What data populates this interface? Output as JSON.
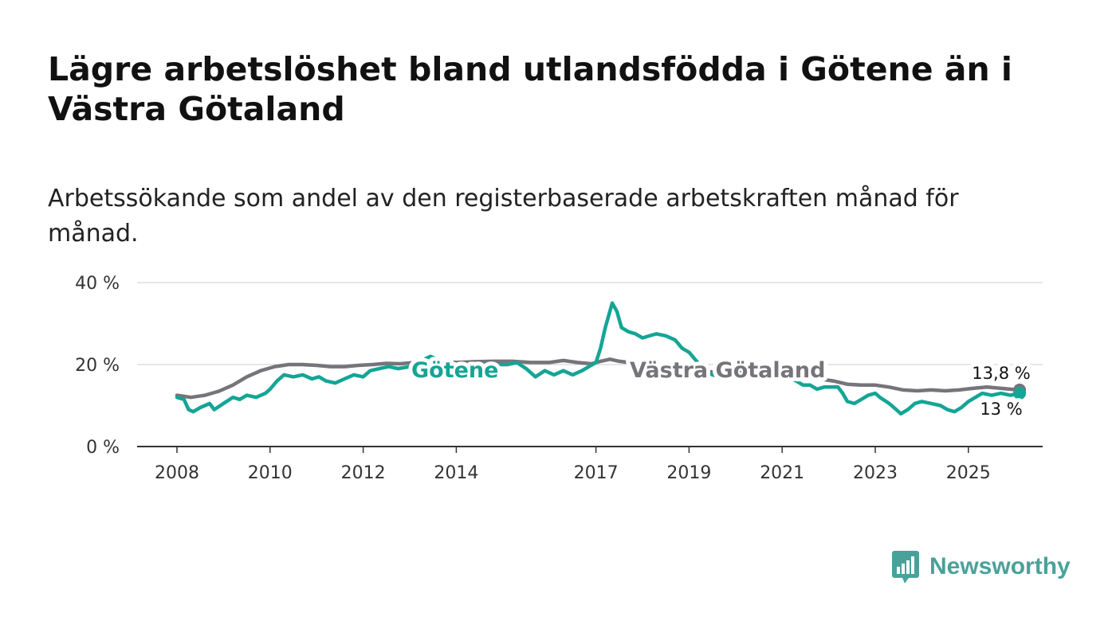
{
  "header": {
    "title": "Lägre arbetslöshet bland utlandsfödda i Götene än i Västra Götaland",
    "subtitle": "Arbetssökande som andel av den registerbaserade arbetskraften månad för månad."
  },
  "brand": {
    "name": "Newsworthy",
    "icon": "newsworthy-logo-icon"
  },
  "colors": {
    "gotene": "#14a595",
    "vastra": "#76747a",
    "grid": "#dddddd",
    "axis": "#333333",
    "brand": "#48a29a"
  },
  "chart_data": {
    "type": "line",
    "title": "Lägre arbetslöshet bland utlandsfödda i Götene än i Västra Götaland",
    "subtitle": "Arbetssökande som andel av den registerbaserade arbetskraften månad för månad.",
    "xlabel": "",
    "ylabel": "",
    "xlim": [
      2008.0,
      2026.5
    ],
    "ylim": [
      0,
      40
    ],
    "grid": true,
    "yticks": [
      0,
      20,
      40
    ],
    "ytick_labels": [
      "0 %",
      "20 %",
      "40 %"
    ],
    "xticks": [
      2008,
      2010,
      2012,
      2014,
      2017,
      2019,
      2021,
      2023,
      2025
    ],
    "xtick_labels": [
      "2008",
      "2010",
      "2012",
      "2014",
      "2017",
      "2019",
      "2021",
      "2023",
      "2025"
    ],
    "series": [
      {
        "name": "Götene",
        "label": "Götene",
        "end_label": "13 %",
        "points": [
          [
            2008.0,
            12
          ],
          [
            2008.15,
            11.5
          ],
          [
            2008.25,
            9
          ],
          [
            2008.35,
            8.5
          ],
          [
            2008.5,
            9.5
          ],
          [
            2008.7,
            10.5
          ],
          [
            2008.8,
            9
          ],
          [
            2009.0,
            10.5
          ],
          [
            2009.2,
            12
          ],
          [
            2009.35,
            11.5
          ],
          [
            2009.5,
            12.5
          ],
          [
            2009.7,
            12
          ],
          [
            2009.9,
            13
          ],
          [
            2010.0,
            14
          ],
          [
            2010.15,
            16
          ],
          [
            2010.3,
            17.5
          ],
          [
            2010.5,
            17
          ],
          [
            2010.7,
            17.5
          ],
          [
            2010.9,
            16.5
          ],
          [
            2011.05,
            17
          ],
          [
            2011.2,
            16
          ],
          [
            2011.4,
            15.5
          ],
          [
            2011.6,
            16.5
          ],
          [
            2011.8,
            17.5
          ],
          [
            2012.0,
            17
          ],
          [
            2012.15,
            18.5
          ],
          [
            2012.35,
            19
          ],
          [
            2012.55,
            19.5
          ],
          [
            2012.75,
            19
          ],
          [
            2013.0,
            19.5
          ],
          [
            2013.2,
            20.5
          ],
          [
            2013.35,
            21.5
          ],
          [
            2013.45,
            22
          ],
          [
            2013.7,
            20.5
          ],
          [
            2013.95,
            19.5
          ],
          [
            2014.3,
            19.5
          ],
          [
            2014.6,
            20
          ],
          [
            2014.9,
            20
          ],
          [
            2015.1,
            20
          ],
          [
            2015.3,
            20.5
          ],
          [
            2015.5,
            19
          ],
          [
            2015.7,
            17
          ],
          [
            2015.9,
            18.5
          ],
          [
            2016.1,
            17.5
          ],
          [
            2016.3,
            18.5
          ],
          [
            2016.5,
            17.5
          ],
          [
            2016.7,
            18.5
          ],
          [
            2016.85,
            19.5
          ],
          [
            2017.0,
            20.5
          ],
          [
            2017.1,
            24
          ],
          [
            2017.2,
            29
          ],
          [
            2017.3,
            33
          ],
          [
            2017.35,
            35
          ],
          [
            2017.45,
            33
          ],
          [
            2017.55,
            29
          ],
          [
            2017.7,
            28
          ],
          [
            2017.85,
            27.5
          ],
          [
            2018.0,
            26.5
          ],
          [
            2018.15,
            27
          ],
          [
            2018.3,
            27.5
          ],
          [
            2018.5,
            27
          ],
          [
            2018.7,
            26
          ],
          [
            2018.85,
            24
          ],
          [
            2019.0,
            23
          ],
          [
            2019.15,
            21
          ],
          [
            2019.3,
            19
          ],
          [
            2019.5,
            17.5
          ],
          [
            2019.7,
            17
          ],
          [
            2019.9,
            17.5
          ],
          [
            2020.1,
            18
          ],
          [
            2020.3,
            18.5
          ],
          [
            2020.5,
            18
          ],
          [
            2020.7,
            18
          ],
          [
            2020.9,
            17.5
          ],
          [
            2021.1,
            17
          ],
          [
            2021.3,
            16
          ],
          [
            2021.45,
            15
          ],
          [
            2021.6,
            15
          ],
          [
            2021.75,
            14
          ],
          [
            2021.9,
            14.5
          ],
          [
            2022.05,
            14.5
          ],
          [
            2022.2,
            14.5
          ],
          [
            2022.3,
            13
          ],
          [
            2022.4,
            11
          ],
          [
            2022.55,
            10.5
          ],
          [
            2022.7,
            11.5
          ],
          [
            2022.85,
            12.5
          ],
          [
            2023.0,
            13
          ],
          [
            2023.1,
            12
          ],
          [
            2023.3,
            10.5
          ],
          [
            2023.45,
            9
          ],
          [
            2023.55,
            8
          ],
          [
            2023.7,
            9
          ],
          [
            2023.85,
            10.5
          ],
          [
            2024.0,
            11
          ],
          [
            2024.2,
            10.5
          ],
          [
            2024.4,
            10
          ],
          [
            2024.55,
            9
          ],
          [
            2024.7,
            8.5
          ],
          [
            2024.85,
            9.5
          ],
          [
            2025.0,
            11
          ],
          [
            2025.15,
            12
          ],
          [
            2025.3,
            13
          ],
          [
            2025.5,
            12.5
          ],
          [
            2025.7,
            13
          ],
          [
            2025.9,
            12.5
          ],
          [
            2026.1,
            13
          ]
        ]
      },
      {
        "name": "Västra Götaland",
        "label": "Västra Götaland",
        "end_label": "13,8 %",
        "points": [
          [
            2008.0,
            12.5
          ],
          [
            2008.3,
            12
          ],
          [
            2008.6,
            12.5
          ],
          [
            2008.9,
            13.5
          ],
          [
            2009.2,
            15
          ],
          [
            2009.5,
            17
          ],
          [
            2009.8,
            18.5
          ],
          [
            2010.1,
            19.5
          ],
          [
            2010.4,
            20
          ],
          [
            2010.7,
            20
          ],
          [
            2011.0,
            19.8
          ],
          [
            2011.3,
            19.5
          ],
          [
            2011.6,
            19.5
          ],
          [
            2011.9,
            19.8
          ],
          [
            2012.2,
            20
          ],
          [
            2012.5,
            20.3
          ],
          [
            2012.8,
            20.2
          ],
          [
            2013.1,
            20.5
          ],
          [
            2013.4,
            21
          ],
          [
            2013.7,
            20.8
          ],
          [
            2014.0,
            20.5
          ],
          [
            2014.4,
            20.7
          ],
          [
            2014.8,
            20.8
          ],
          [
            2015.2,
            20.8
          ],
          [
            2015.6,
            20.5
          ],
          [
            2016.0,
            20.5
          ],
          [
            2016.3,
            21
          ],
          [
            2016.6,
            20.5
          ],
          [
            2016.9,
            20.2
          ],
          [
            2017.1,
            20.8
          ],
          [
            2017.3,
            21.3
          ],
          [
            2017.5,
            20.8
          ],
          [
            2017.7,
            20.5
          ],
          [
            2017.9,
            20.3
          ],
          [
            2018.2,
            20
          ],
          [
            2018.5,
            19.5
          ],
          [
            2018.8,
            19
          ],
          [
            2019.1,
            18.5
          ],
          [
            2019.4,
            18.3
          ],
          [
            2019.7,
            18
          ],
          [
            2020.0,
            18.2
          ],
          [
            2020.3,
            19
          ],
          [
            2020.6,
            18.5
          ],
          [
            2020.9,
            17.8
          ],
          [
            2021.2,
            17.2
          ],
          [
            2021.5,
            16.8
          ],
          [
            2021.8,
            16.5
          ],
          [
            2022.1,
            16
          ],
          [
            2022.4,
            15.2
          ],
          [
            2022.7,
            15
          ],
          [
            2023.0,
            15
          ],
          [
            2023.3,
            14.5
          ],
          [
            2023.6,
            13.8
          ],
          [
            2023.9,
            13.6
          ],
          [
            2024.2,
            13.8
          ],
          [
            2024.5,
            13.6
          ],
          [
            2024.8,
            13.8
          ],
          [
            2025.1,
            14.2
          ],
          [
            2025.4,
            14.5
          ],
          [
            2025.7,
            14.2
          ],
          [
            2026.0,
            13.9
          ],
          [
            2026.1,
            13.8
          ]
        ]
      }
    ]
  }
}
